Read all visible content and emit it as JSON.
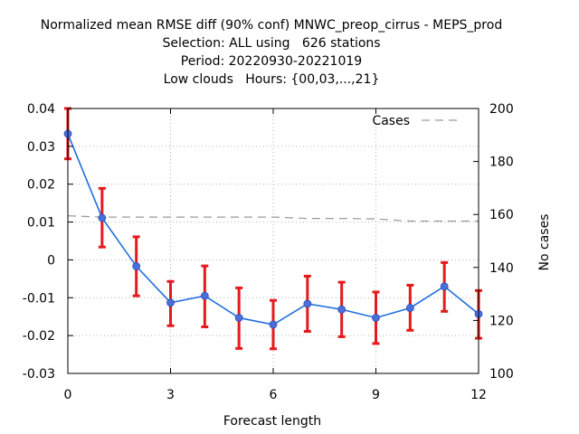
{
  "chart_data": {
    "type": "line",
    "title_lines": [
      "Normalized mean RMSE diff (90% conf) MNWC_preop_cirrus - MEPS_prod",
      "Selection: ALL using   626 stations",
      "Period: 20220930-20221019",
      "Low clouds   Hours: {00,03,...,21}"
    ],
    "xlabel": "Forecast length",
    "ylabel_right": "No cases",
    "xlim": [
      0,
      12
    ],
    "ylim": [
      -0.03,
      0.04
    ],
    "y2lim": [
      100,
      200
    ],
    "x_ticks": [
      0,
      3,
      6,
      9,
      12
    ],
    "y_ticks": [
      0.04,
      0.03,
      0.02,
      0.01,
      0,
      -0.01,
      -0.02,
      -0.03
    ],
    "y_tick_labels": [
      "0.04",
      "0.03",
      "0.02",
      "0.01",
      "0",
      "-0.01",
      "-0.02",
      "-0.03"
    ],
    "y2_ticks": [
      200,
      180,
      160,
      140,
      120,
      100
    ],
    "grid": true,
    "legend_position": "top-right",
    "series": [
      {
        "name": "",
        "kind": "line-with-errorbars",
        "color": "#1f6fdf",
        "marker_color": "#4a6fd8",
        "errorbar_color": "#e41a1c",
        "x": [
          0,
          1,
          2,
          3,
          4,
          5,
          6,
          7,
          8,
          9,
          10,
          11,
          12
        ],
        "y": [
          0.0333,
          0.0111,
          -0.0017,
          -0.0113,
          -0.0095,
          -0.0153,
          -0.0171,
          -0.0116,
          -0.0131,
          -0.0153,
          -0.0127,
          -0.007,
          -0.0143
        ],
        "y_low": [
          0.0267,
          0.0034,
          -0.0095,
          -0.0174,
          -0.0177,
          -0.0234,
          -0.0235,
          -0.0189,
          -0.0203,
          -0.0221,
          -0.0186,
          -0.0136,
          -0.0207
        ],
        "y_high": [
          0.04,
          0.0189,
          0.0061,
          -0.0057,
          -0.0016,
          -0.0074,
          -0.0107,
          -0.0043,
          -0.0059,
          -0.0085,
          -0.0067,
          -0.0007,
          -0.0081
        ]
      },
      {
        "name": "Cases",
        "kind": "dashed-line",
        "axis": "right",
        "color": "#999999",
        "x": [
          0,
          1,
          2,
          3,
          4,
          5,
          6,
          7,
          8,
          9,
          10,
          11,
          12
        ],
        "y": [
          159.5,
          159.0,
          159.0,
          159.0,
          159.0,
          159.0,
          159.0,
          158.5,
          158.5,
          158.3,
          157.5,
          157.5,
          157.5
        ]
      }
    ]
  }
}
